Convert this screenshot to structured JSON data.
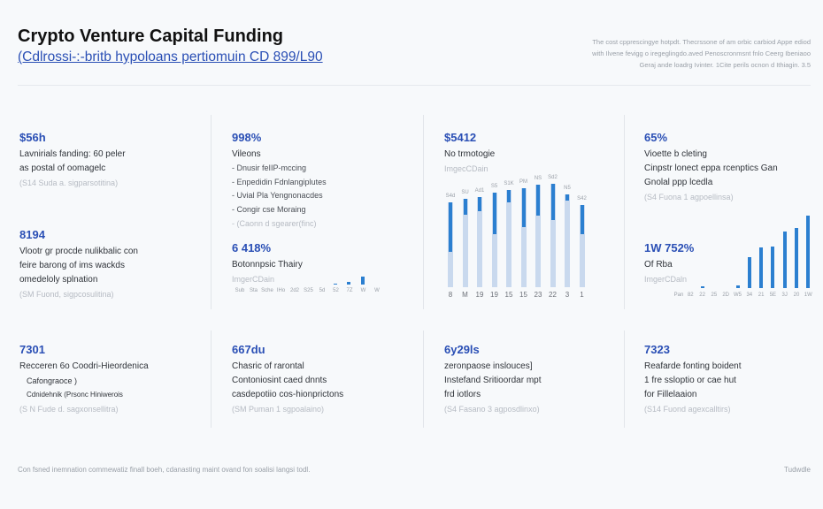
{
  "header": {
    "title": "Crypto Venture Capital Funding",
    "subtitle": "(Cdlrossi-:-britb hypoloans pertiomuin CD 899/L90",
    "note_lines": [
      "The cost cpprescingye hotpdt. Thecrssone of am orbic carbiod Appe ediod",
      "with Ilvene fevigg o iregeglingdo.aved Penoscronmsnt fnlo Ceerg Ibeniaoo",
      "Geraj ande loadrg Ivinter. 1Cite perils ocnon d Ithiagin. 3.5"
    ]
  },
  "cards": [
    {
      "value": "$56h",
      "lines": [
        "Lavnirials fanding: 60 peler",
        "as postal of oomagelc"
      ],
      "muted": "(S14 Suda a. sigparsotitina)"
    },
    {
      "value": "8194",
      "lines": [
        "Vlootr gr procde nulikbalic con",
        "feire barong of ims wackds",
        "omedeloly splnation"
      ],
      "muted": "(SM Fuond, sigpcosulitina)"
    },
    {
      "value": "7301",
      "lines": [
        "Recceren 6o Coodri-Hieordenica",
        "Cafongraoce )",
        "Cdnidehnik (Prsonc Hiniwerois"
      ],
      "muted": "(S N Fude d. sagxonsellitra)"
    },
    {
      "value": "998%",
      "lines": [
        "Vileons"
      ],
      "bullets": [
        "Dnusir feIIP-mccing",
        "Enpedidin Fdnlangiplutes",
        "Uvial Pla Yengnonacdes",
        "Congir cse Moraing"
      ],
      "muted": "- (Caonn d sgearer(finc)"
    },
    {
      "value": "6 418%",
      "lines": [
        "Botonnpsic Thairy"
      ],
      "muted": "ImgerCDain"
    },
    {
      "value": "667du",
      "lines": [
        "Chasric of rarontal",
        "Contoniosint caed dnnts",
        "casdepotiio cos-hionprictons"
      ],
      "muted": "(SM Puman 1 sgpoalaino)"
    },
    {
      "value": "$5412",
      "lines": [
        "No trmotogie"
      ],
      "muted": "ImgecCDain"
    },
    {
      "value": "6y29ls",
      "lines": [
        "zeronpaose inslouces]",
        "Instefand Sritioordar mpt",
        "frd iotlors"
      ],
      "muted": "(S4 Fasano 3 agposdlinxo)"
    },
    {
      "value": "65%",
      "lines": [
        "Vioette b cleting",
        "Cinpstr lonect eppa rcenptics Gan",
        "Gnolal ppp lcedla"
      ],
      "muted": "(S4 Fuona 1 agpoellinsa)"
    },
    {
      "value": "1W 752%",
      "lines": [
        "Of Rba"
      ],
      "muted": "ImgerCDaln"
    },
    {
      "value": "7323",
      "lines": [
        "Reafarde fonting boident",
        "1 fre ssloptio or cae hut",
        "for Fillelaaion"
      ],
      "muted": "(S14 Fuond agexcalltirs)"
    }
  ],
  "chart_data": [
    {
      "type": "bar",
      "title": "No trmotogie",
      "categories": [
        "8",
        "M",
        "19",
        "19",
        "15",
        "15",
        "23",
        "22",
        "3",
        "1"
      ],
      "series": [
        {
          "name": "total",
          "values": [
            76,
            79,
            81,
            85,
            87,
            89,
            92,
            93,
            83,
            74
          ]
        },
        {
          "name": "highlight",
          "values": [
            44,
            14,
            13,
            37,
            11,
            35,
            28,
            33,
            5,
            26
          ]
        }
      ],
      "labels": [
        "S4d",
        "SU",
        "Ad1",
        "S5",
        "S1K",
        "PM",
        "NS",
        "Sd2",
        "N5",
        "S42"
      ],
      "ylim": [
        0,
        100
      ]
    },
    {
      "type": "bar",
      "title": "Botonnpsic Thairy",
      "categories": [
        "Sub",
        "Sta",
        "Sche",
        "IHo",
        "2d2",
        "S25",
        "5d",
        "52",
        "7Z",
        "W",
        "W"
      ],
      "values": [
        0,
        0,
        0,
        0,
        0,
        0,
        0,
        1,
        3,
        9,
        0
      ],
      "ylim": [
        0,
        30
      ]
    },
    {
      "type": "bar",
      "title": "Of Rba",
      "categories": [
        "Pan",
        "82",
        "22",
        "25",
        "2D",
        "W5",
        "34",
        "21",
        "5E",
        "3J",
        "20",
        "1W"
      ],
      "values": [
        0,
        0,
        2,
        0,
        0,
        3,
        37,
        48,
        49,
        67,
        72,
        86
      ],
      "ylim": [
        0,
        100
      ]
    }
  ],
  "footer": {
    "text": "Con fsned inemnation commewatiz finall boeh, cdanasting maint ovand fon soalisi langsi todl.",
    "right": "Tudwdle"
  },
  "colors": {
    "accent": "#2a4fb5",
    "bar": "#2b7fd0",
    "bar_bg": "#c9d9ee"
  }
}
